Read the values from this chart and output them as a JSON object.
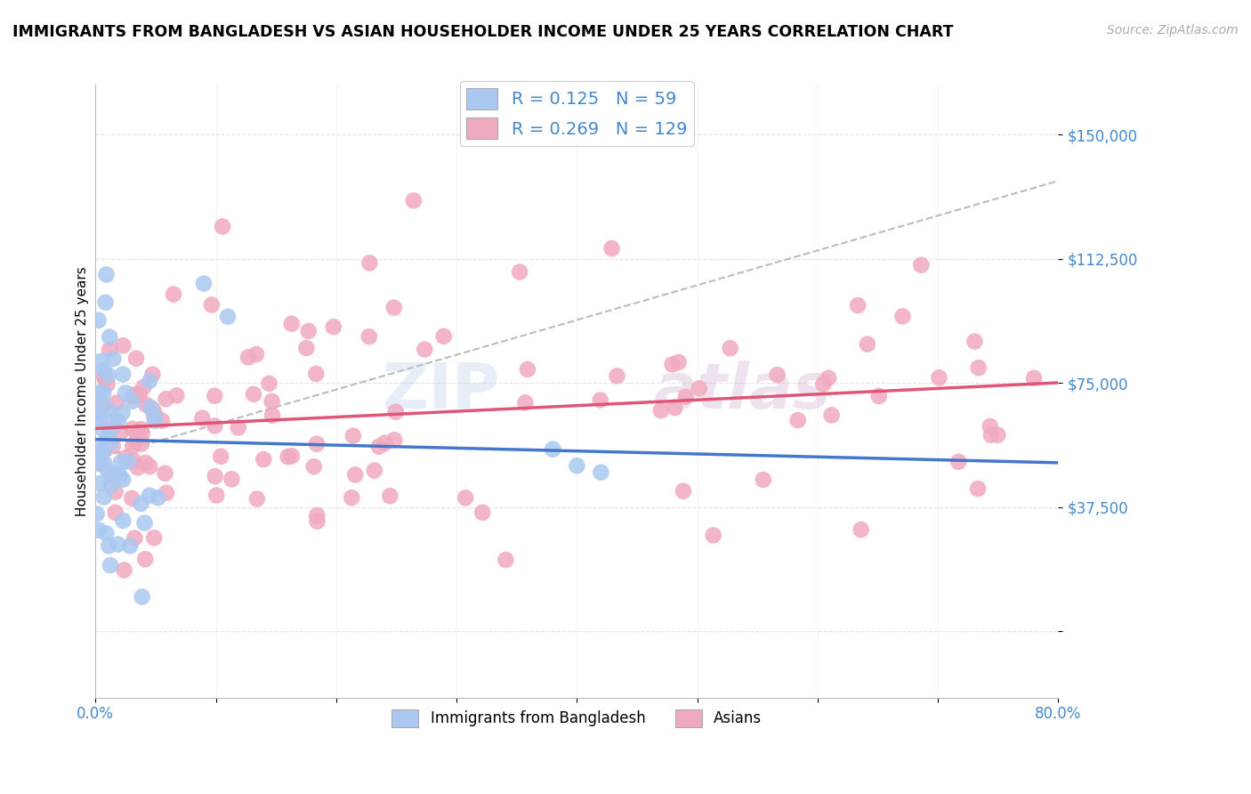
{
  "title": "IMMIGRANTS FROM BANGLADESH VS ASIAN HOUSEHOLDER INCOME UNDER 25 YEARS CORRELATION CHART",
  "source": "Source: ZipAtlas.com",
  "ylabel": "Householder Income Under 25 years",
  "xlim": [
    0.0,
    0.8
  ],
  "ylim": [
    -20000,
    165000
  ],
  "color_blue": "#aac8f0",
  "color_pink": "#f0aabf",
  "color_blue_line": "#4477cc",
  "color_pink_line": "#dd5577",
  "color_blue_text": "#4488cc",
  "color_pink_text": "#dd5577",
  "legend_blue_R": "0.125",
  "legend_blue_N": "59",
  "legend_pink_R": "0.269",
  "legend_pink_N": "129",
  "legend_bottom_blue": "Immigrants from Bangladesh",
  "legend_bottom_pink": "Asians",
  "watermark": "ZIPAtlas",
  "background_color": "#ffffff",
  "grid_color": "#dddddd",
  "ytick_vals": [
    0,
    37500,
    75000,
    112500,
    150000
  ],
  "ytick_labels": [
    "",
    "$37,500",
    "$75,000",
    "$112,500",
    "$150,000"
  ]
}
